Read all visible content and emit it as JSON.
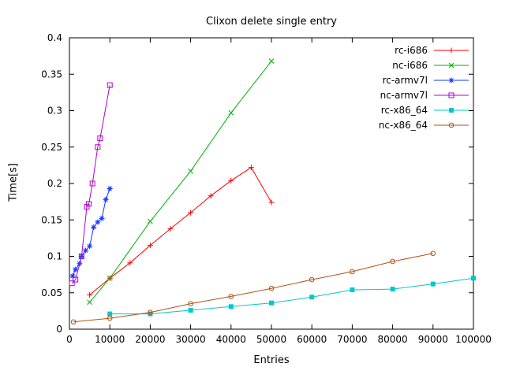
{
  "window": {
    "background": "#ffffff"
  },
  "chart_data": {
    "type": "line",
    "title": "Clixon delete single entry",
    "xlabel": "Entries",
    "ylabel": "Time[s]",
    "xlim": [
      0,
      100000
    ],
    "ylim": [
      0,
      0.4
    ],
    "xticks": [
      "0",
      "10000",
      "20000",
      "30000",
      "40000",
      "50000",
      "60000",
      "70000",
      "80000",
      "90000",
      "100000"
    ],
    "yticks": [
      "0",
      "0.05",
      "0.1",
      "0.15",
      "0.2",
      "0.25",
      "0.3",
      "0.35",
      "0.4"
    ],
    "grid": false,
    "legend_position": "top-right",
    "axis_color": "#000000",
    "series": [
      {
        "name": "rc-i686",
        "color": "#ff0000",
        "marker": "plus",
        "points": [
          [
            5000,
            0.047
          ],
          [
            10000,
            0.07
          ],
          [
            15000,
            0.091
          ],
          [
            20000,
            0.115
          ],
          [
            25000,
            0.138
          ],
          [
            30000,
            0.16
          ],
          [
            35000,
            0.183
          ],
          [
            40000,
            0.204
          ],
          [
            45000,
            0.222
          ],
          [
            50000,
            0.174
          ]
        ]
      },
      {
        "name": "nc-i686",
        "color": "#00b000",
        "marker": "cross",
        "points": [
          [
            5000,
            0.037
          ],
          [
            10000,
            0.07
          ],
          [
            20000,
            0.148
          ],
          [
            30000,
            0.217
          ],
          [
            40000,
            0.297
          ],
          [
            50000,
            0.368
          ]
        ]
      },
      {
        "name": "rc-armv7l",
        "color": "#1133ff",
        "marker": "asterisk",
        "points": [
          [
            800,
            0.073
          ],
          [
            1500,
            0.082
          ],
          [
            2500,
            0.09
          ],
          [
            3000,
            0.1
          ],
          [
            4000,
            0.108
          ],
          [
            5000,
            0.114
          ],
          [
            6000,
            0.14
          ],
          [
            7000,
            0.147
          ],
          [
            8000,
            0.152
          ],
          [
            9000,
            0.178
          ],
          [
            10000,
            0.193
          ]
        ]
      },
      {
        "name": "nc-armv7l",
        "color": "#b000d0",
        "marker": "square-open",
        "points": [
          [
            600,
            0.063
          ],
          [
            1500,
            0.068
          ],
          [
            3000,
            0.1
          ],
          [
            4300,
            0.168
          ],
          [
            4800,
            0.172
          ],
          [
            5700,
            0.2
          ],
          [
            7000,
            0.25
          ],
          [
            7600,
            0.262
          ],
          [
            10000,
            0.335
          ]
        ]
      },
      {
        "name": "rc-x86_64",
        "color": "#00c8c8",
        "marker": "square-filled",
        "points": [
          [
            10000,
            0.021
          ],
          [
            20000,
            0.021
          ],
          [
            30000,
            0.026
          ],
          [
            40000,
            0.031
          ],
          [
            50000,
            0.036
          ],
          [
            60000,
            0.044
          ],
          [
            70000,
            0.054
          ],
          [
            80000,
            0.055
          ],
          [
            90000,
            0.062
          ],
          [
            100000,
            0.07
          ]
        ]
      },
      {
        "name": "nc-x86_64",
        "color": "#b35211",
        "marker": "circle-open",
        "points": [
          [
            1000,
            0.01
          ],
          [
            10000,
            0.015
          ],
          [
            20000,
            0.023
          ],
          [
            30000,
            0.035
          ],
          [
            40000,
            0.045
          ],
          [
            50000,
            0.056
          ],
          [
            60000,
            0.068
          ],
          [
            70000,
            0.079
          ],
          [
            80000,
            0.093
          ],
          [
            90000,
            0.104
          ]
        ]
      }
    ]
  }
}
